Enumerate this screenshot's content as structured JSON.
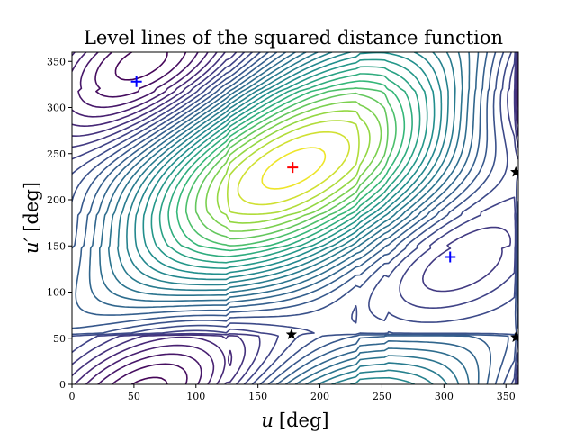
{
  "chart_data": {
    "type": "contour",
    "title": "Level lines of the squared distance function",
    "xlabel_var": "u",
    "xlabel_unit": "[deg]",
    "ylabel_var": "u′",
    "ylabel_unit": "[deg]",
    "xlim": [
      0,
      360
    ],
    "ylim": [
      0,
      360
    ],
    "xticks": [
      0,
      50,
      100,
      150,
      200,
      250,
      300,
      350
    ],
    "yticks": [
      0,
      50,
      100,
      150,
      200,
      250,
      300,
      350
    ],
    "grid": false,
    "colormap": "viridis",
    "levels": 30,
    "field": {
      "wells": [
        {
          "x": 52,
          "y": 328,
          "depth": 1.0
        },
        {
          "x": 305,
          "y": 138,
          "depth": 1.0
        },
        {
          "x": 75,
          "y": 5,
          "depth": 0.7
        }
      ],
      "peak": {
        "x": 178,
        "y": 235,
        "height": 1.0
      }
    },
    "markers": [
      {
        "kind": "plus",
        "color": "#0000ff",
        "x": 52,
        "y": 328
      },
      {
        "kind": "plus",
        "color": "#0000ff",
        "x": 305,
        "y": 138
      },
      {
        "kind": "plus",
        "color": "#ff0000",
        "x": 178,
        "y": 235
      },
      {
        "kind": "star",
        "color": "#000000",
        "x": 177,
        "y": 54
      },
      {
        "kind": "star",
        "color": "#000000",
        "x": 358,
        "y": 230
      },
      {
        "kind": "star",
        "color": "#000000",
        "x": 358,
        "y": 51
      }
    ]
  }
}
